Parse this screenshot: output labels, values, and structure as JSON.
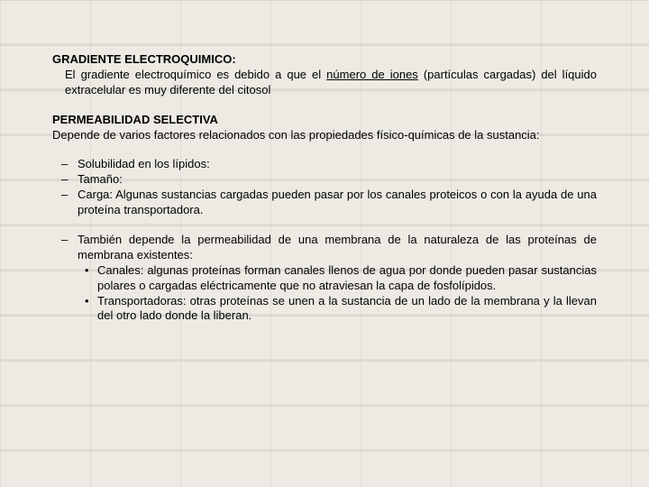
{
  "section1": {
    "title": "GRADIENTE ELECTROQUIMICO:",
    "body_before": "El gradiente electroquímico es debido a que el ",
    "link": "número de iones",
    "body_after": " (partículas cargadas) del líquido extracelular es muy diferente del citosol"
  },
  "section2": {
    "title": "PERMEABILIDAD SELECTIVA",
    "body": "Depende de varios factores relacionados con las propiedades físico-químicas de la sustancia:"
  },
  "list1": {
    "item1": "Solubilidad en los lípidos:",
    "item2": "Tamaño:",
    "item3": "Carga: Algunas sustancias cargadas pueden pasar por los canales proteicos o con la ayuda de una proteína transportadora."
  },
  "list2": {
    "item1": "También depende la permeabilidad de una membrana de la naturaleza de las proteínas de membrana existentes:",
    "sub1": "Canales: algunas proteínas forman canales llenos de agua por donde pueden pasar sustancias polares o cargadas eléctricamente que no atraviesan la capa de fosfolípidos.",
    "sub2": "Transportadoras: otras proteínas se unen a la sustancia de un lado de la membrana y la llevan del otro lado donde la liberan."
  },
  "colors": {
    "text": "#000000",
    "background": "#eceae3"
  },
  "typography": {
    "font_family": "Arial",
    "base_fontsize": 13,
    "title_weight": "bold"
  }
}
